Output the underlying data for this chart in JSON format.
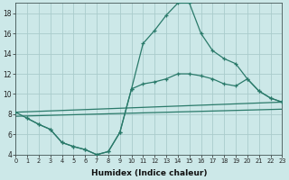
{
  "xlabel": "Humidex (Indice chaleur)",
  "background_color": "#cce8e8",
  "grid_color": "#aacccc",
  "line_color": "#2a7a6a",
  "xlim": [
    0,
    23
  ],
  "ylim": [
    4,
    19
  ],
  "xticks": [
    0,
    1,
    2,
    3,
    4,
    5,
    6,
    7,
    8,
    9,
    10,
    11,
    12,
    13,
    14,
    15,
    16,
    17,
    18,
    19,
    20,
    21,
    22,
    23
  ],
  "yticks": [
    4,
    6,
    8,
    10,
    12,
    14,
    16,
    18
  ],
  "line1_x": [
    0,
    1,
    2,
    3,
    4,
    5,
    6,
    7,
    8,
    9,
    10,
    11,
    12,
    13,
    14,
    15,
    16,
    17,
    18,
    19,
    20,
    21,
    22,
    23
  ],
  "line1_y": [
    8.2,
    7.6,
    7.0,
    6.5,
    5.2,
    4.8,
    4.5,
    4.0,
    4.3,
    6.2,
    10.5,
    15.0,
    16.3,
    17.8,
    19.0,
    19.0,
    16.0,
    14.3,
    13.5,
    13.0,
    11.5,
    10.3,
    9.6,
    9.2
  ],
  "line2_x": [
    1,
    2,
    3,
    4,
    5,
    6,
    7,
    8,
    9,
    10,
    11,
    12,
    13,
    14,
    15,
    16,
    17,
    18,
    19,
    20,
    21,
    22,
    23
  ],
  "line2_y": [
    7.6,
    7.0,
    6.5,
    5.2,
    4.8,
    4.5,
    4.0,
    4.3,
    6.2,
    10.5,
    11.0,
    11.2,
    11.5,
    12.0,
    12.0,
    11.8,
    11.5,
    11.0,
    10.8,
    11.5,
    10.3,
    9.6,
    9.2
  ],
  "line3_x": [
    0,
    23
  ],
  "line3_y": [
    8.2,
    9.2
  ],
  "line4_x": [
    0,
    23
  ],
  "line4_y": [
    7.8,
    8.5
  ]
}
